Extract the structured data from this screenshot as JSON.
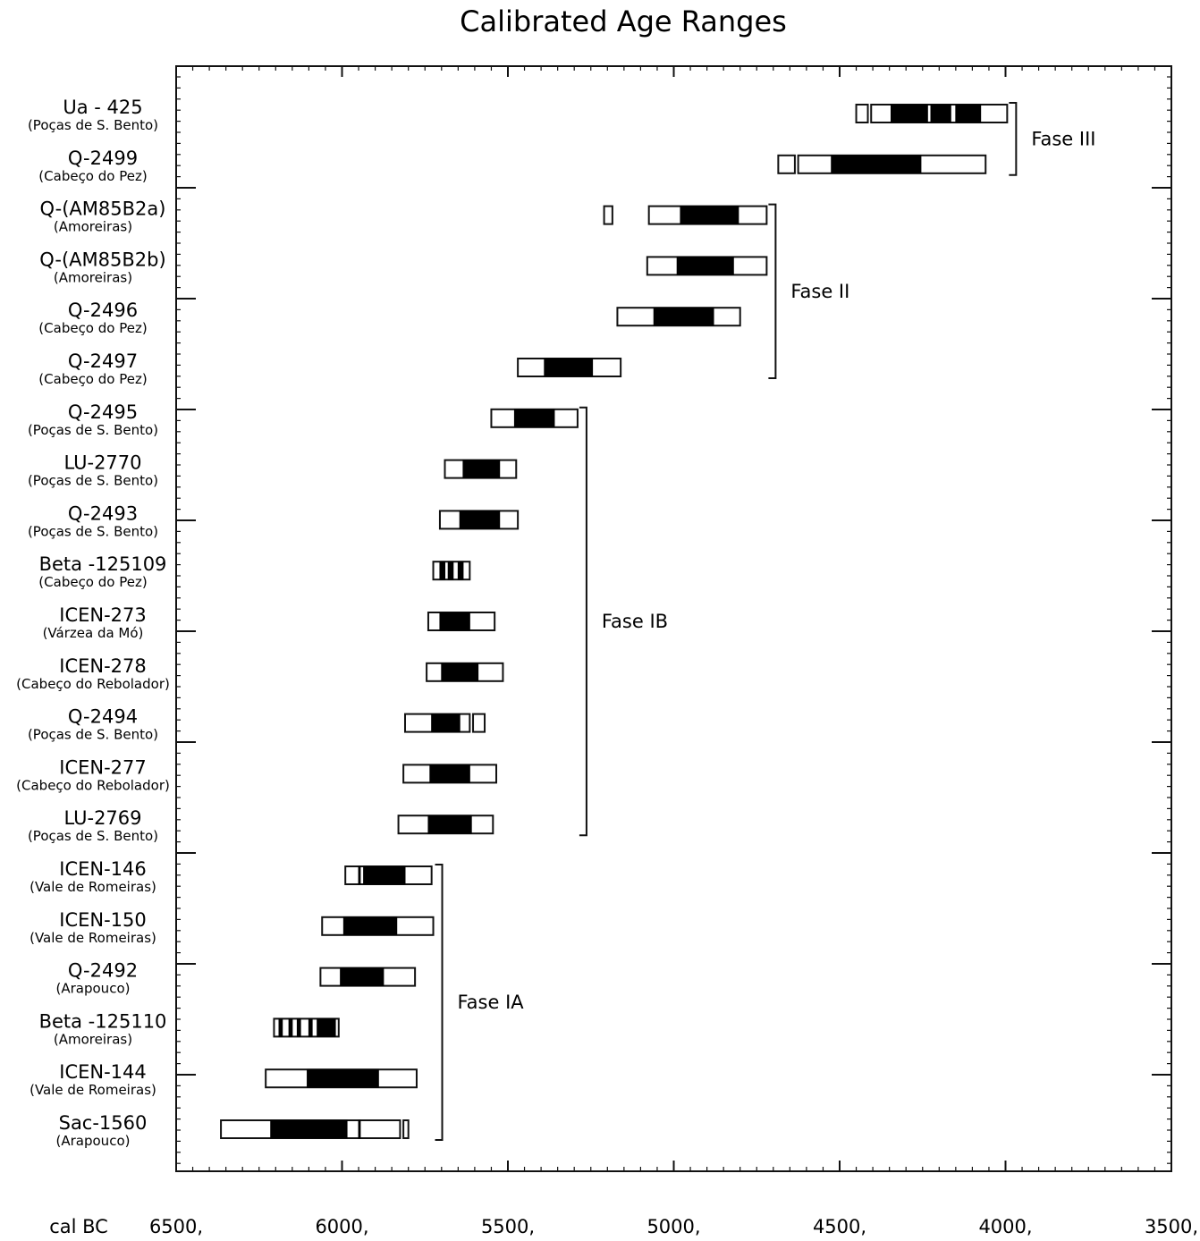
{
  "chart_data": {
    "type": "calibrated-range",
    "title": "Calibrated Age Ranges",
    "xlabel": "cal BC",
    "xlim": [
      6500,
      3500
    ],
    "x_reversed": true,
    "x_ticks": [
      "6500,",
      "6000,",
      "5500,",
      "5000,",
      "4500,",
      "4000,",
      "3500,"
    ],
    "x_tick_values": [
      6500,
      6000,
      5500,
      5000,
      4500,
      4000,
      3500
    ],
    "samples": [
      {
        "lab": "Ua - 425",
        "site": "(Poças de S. Bento)",
        "ranges": [
          [
            4450,
            4415
          ],
          [
            4405,
            3995
          ]
        ],
        "dark": [
          [
            4345,
            4235
          ],
          [
            4225,
            4165
          ],
          [
            4150,
            4075
          ]
        ]
      },
      {
        "lab": "Q-2499",
        "site": "(Cabeço do Pez)",
        "ranges": [
          [
            4685,
            4635
          ],
          [
            4625,
            4060
          ]
        ],
        "dark": [
          [
            4525,
            4255
          ]
        ]
      },
      {
        "lab": "Q-(AM85B2a)",
        "site": "(Amoreiras)",
        "ranges": [
          [
            5210,
            5185
          ],
          [
            5075,
            4720
          ]
        ],
        "dark": [
          [
            4980,
            4805
          ]
        ]
      },
      {
        "lab": "Q-(AM85B2b)",
        "site": "(Amoreiras)",
        "ranges": [
          [
            5080,
            4720
          ]
        ],
        "dark": [
          [
            4990,
            4820
          ]
        ]
      },
      {
        "lab": "Q-2496",
        "site": "(Cabeço do Pez)",
        "ranges": [
          [
            5170,
            4800
          ]
        ],
        "dark": [
          [
            5060,
            4880
          ]
        ]
      },
      {
        "lab": "Q-2497",
        "site": "(Cabeço do Pez)",
        "ranges": [
          [
            5470,
            5160
          ]
        ],
        "dark": [
          [
            5390,
            5245
          ]
        ]
      },
      {
        "lab": "Q-2495",
        "site": "(Poças de S. Bento)",
        "ranges": [
          [
            5550,
            5290
          ]
        ],
        "dark": [
          [
            5480,
            5360
          ]
        ]
      },
      {
        "lab": "LU-2770",
        "site": "(Poças de S. Bento)",
        "ranges": [
          [
            5690,
            5475
          ]
        ],
        "dark": [
          [
            5635,
            5525
          ]
        ]
      },
      {
        "lab": "Q-2493",
        "site": "(Poças de S. Bento)",
        "ranges": [
          [
            5705,
            5470
          ]
        ],
        "dark": [
          [
            5645,
            5525
          ]
        ]
      },
      {
        "lab": "Beta -125109",
        "site": "(Cabeço do Pez)",
        "ranges": [
          [
            5725,
            5615
          ]
        ],
        "dark": [
          [
            5705,
            5690
          ],
          [
            5680,
            5665
          ],
          [
            5650,
            5635
          ]
        ]
      },
      {
        "lab": "ICEN-273",
        "site": "(Várzea da Mó)",
        "ranges": [
          [
            5740,
            5540
          ]
        ],
        "dark": [
          [
            5705,
            5615
          ]
        ]
      },
      {
        "lab": "ICEN-278",
        "site": "(Cabeço do Rebolador)",
        "ranges": [
          [
            5745,
            5515
          ]
        ],
        "dark": [
          [
            5700,
            5590
          ]
        ]
      },
      {
        "lab": "Q-2494",
        "site": "(Poças de S. Bento)",
        "ranges": [
          [
            5810,
            5615
          ],
          [
            5605,
            5570
          ]
        ],
        "dark": [
          [
            5730,
            5645
          ]
        ]
      },
      {
        "lab": "ICEN-277",
        "site": "(Cabeço do Rebolador)",
        "ranges": [
          [
            5815,
            5535
          ]
        ],
        "dark": [
          [
            5735,
            5615
          ]
        ]
      },
      {
        "lab": "LU-2769",
        "site": "(Poças de S. Bento)",
        "ranges": [
          [
            5830,
            5545
          ]
        ],
        "dark": [
          [
            5740,
            5610
          ]
        ]
      },
      {
        "lab": "ICEN-146",
        "site": "(Vale de Romeiras)",
        "ranges": [
          [
            5990,
            5730
          ]
        ],
        "dark": [
          [
            5950,
            5945
          ],
          [
            5935,
            5810
          ]
        ]
      },
      {
        "lab": "ICEN-150",
        "site": "(Vale de Romeiras)",
        "ranges": [
          [
            6060,
            5725
          ]
        ],
        "dark": [
          [
            5995,
            5835
          ]
        ]
      },
      {
        "lab": "Q-2492",
        "site": "(Arapouco)",
        "ranges": [
          [
            6065,
            5780
          ]
        ],
        "dark": [
          [
            6005,
            5875
          ]
        ]
      },
      {
        "lab": "Beta -125110",
        "site": "(Amoreiras)",
        "ranges": [
          [
            6205,
            6010
          ]
        ],
        "dark": [
          [
            6190,
            6180
          ],
          [
            6160,
            6150
          ],
          [
            6135,
            6125
          ],
          [
            6100,
            6090
          ],
          [
            6075,
            6020
          ]
        ]
      },
      {
        "lab": "ICEN-144",
        "site": "(Vale de Romeiras)",
        "ranges": [
          [
            6230,
            5775
          ]
        ],
        "dark": [
          [
            6105,
            5890
          ]
        ]
      },
      {
        "lab": "Sac-1560",
        "site": "(Arapouco)",
        "ranges": [
          [
            6365,
            5825
          ],
          [
            5815,
            5800
          ]
        ],
        "dark": [
          [
            6215,
            5985
          ],
          [
            5950,
            5945
          ]
        ]
      }
    ],
    "phases": [
      {
        "label": "Fase III",
        "from_row": 0,
        "to_row": 1
      },
      {
        "label": "Fase II",
        "from_row": 2,
        "to_row": 5
      },
      {
        "label": "Fase IB",
        "from_row": 6,
        "to_row": 14
      },
      {
        "label": "Fase IA",
        "from_row": 15,
        "to_row": 20
      }
    ]
  }
}
